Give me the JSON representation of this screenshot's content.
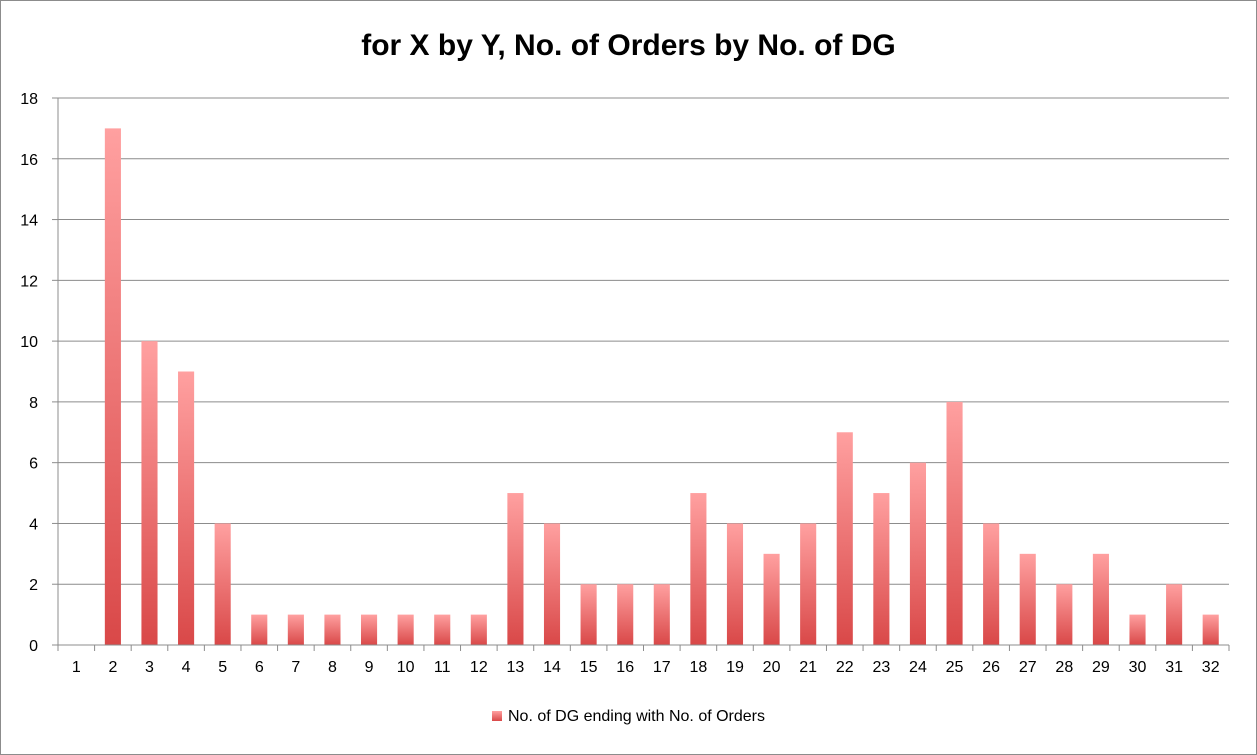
{
  "chart_data": {
    "type": "bar",
    "title": "for X by Y, No. of Orders by No. of DG",
    "xlabel": "",
    "ylabel": "",
    "categories": [
      "1",
      "2",
      "3",
      "4",
      "5",
      "6",
      "7",
      "8",
      "9",
      "10",
      "11",
      "12",
      "13",
      "14",
      "15",
      "16",
      "17",
      "18",
      "19",
      "20",
      "21",
      "22",
      "23",
      "24",
      "25",
      "26",
      "27",
      "28",
      "29",
      "30",
      "31",
      "32"
    ],
    "series": [
      {
        "name": "No. of DG ending with No. of Orders",
        "values": [
          0,
          17,
          10,
          9,
          4,
          1,
          1,
          1,
          1,
          1,
          1,
          1,
          5,
          4,
          2,
          2,
          2,
          5,
          4,
          3,
          4,
          7,
          5,
          6,
          8,
          4,
          3,
          2,
          3,
          1,
          2,
          1
        ]
      }
    ],
    "ylim": [
      0,
      18
    ],
    "yticks": [
      "0",
      "2",
      "4",
      "6",
      "8",
      "10",
      "12",
      "14",
      "16",
      "18"
    ],
    "grid": true,
    "legend_position": "bottom",
    "colors": {
      "bar_top": "#ffa0a0",
      "bar_bottom": "#d94848",
      "grid": "#8c8c8c",
      "axis": "#8c8c8c"
    }
  }
}
